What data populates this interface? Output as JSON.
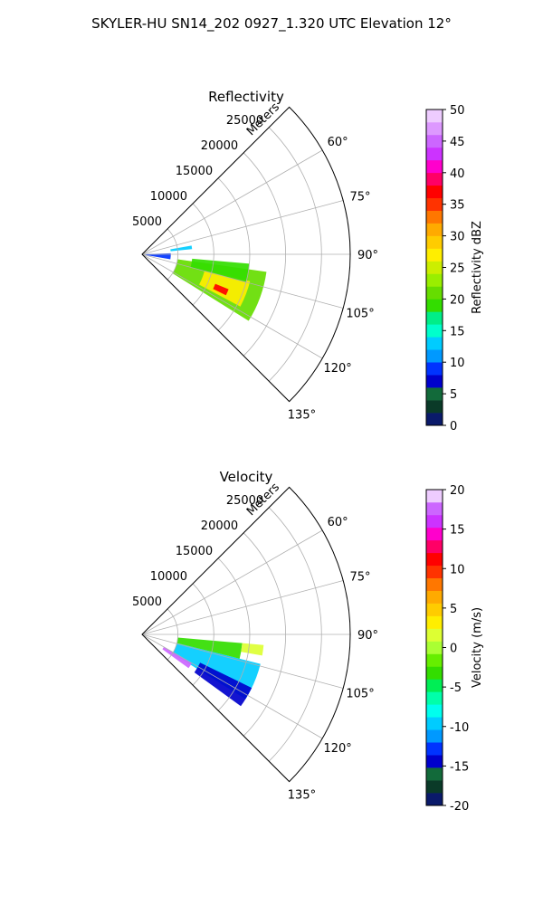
{
  "figure": {
    "title": "SKYLER-HU  SN14_202  0927_1.320 UTC Elevation 12°"
  },
  "chart_data": [
    {
      "type": "heatmap",
      "title": "Reflectivity",
      "projection": "polar-sector",
      "theta_range_deg": [
        45,
        135
      ],
      "r_max_m": 29000,
      "range_label": "Meters",
      "range_ticks": [
        "5000",
        "10000",
        "15000",
        "20000",
        "25000"
      ],
      "angle_ticks": [
        "60°",
        "75°",
        "90°",
        "105°",
        "120°",
        "135°"
      ],
      "colorbar": {
        "label": "Reflectivity dBZ",
        "range": [
          0,
          50
        ],
        "ticks": [
          "0",
          "5",
          "10",
          "15",
          "20",
          "25",
          "30",
          "35",
          "40",
          "45",
          "50"
        ],
        "colors": [
          "#0a1a6a",
          "#0a3a28",
          "#126a3a",
          "#0000cc",
          "#0033ff",
          "#0099ff",
          "#00ccff",
          "#00ffcc",
          "#00ee88",
          "#33dd00",
          "#66dd00",
          "#99ee00",
          "#ccee00",
          "#ffee00",
          "#ffcc00",
          "#ffaa00",
          "#ff7700",
          "#ff3300",
          "#ff0000",
          "#ff0066",
          "#ff00cc",
          "#cc33ff",
          "#cc66ff",
          "#dd99ff",
          "#eeccff"
        ]
      },
      "regions": [
        {
          "name": "main echo",
          "theta": [
            98,
            122
          ],
          "r": [
            5000,
            17500
          ],
          "value": 21
        },
        {
          "name": "core",
          "theta": [
            104,
            118
          ],
          "r": [
            9000,
            15500
          ],
          "value": 26
        },
        {
          "name": "peak",
          "theta": [
            112,
            116
          ],
          "r": [
            11000,
            13000
          ],
          "value": 36
        },
        {
          "name": "east arm",
          "theta": [
            95,
            105
          ],
          "r": [
            7000,
            15000
          ],
          "value": 19
        },
        {
          "name": "near range",
          "theta": [
            88,
            100
          ],
          "r": [
            500,
            4000
          ],
          "value": 8
        },
        {
          "name": "spoke",
          "theta": [
            80,
            84
          ],
          "r": [
            4000,
            7000
          ],
          "value": 12
        }
      ]
    },
    {
      "type": "heatmap",
      "title": "Velocity",
      "projection": "polar-sector",
      "theta_range_deg": [
        45,
        135
      ],
      "r_max_m": 29000,
      "range_label": "Meters",
      "range_ticks": [
        "5000",
        "10000",
        "15000",
        "20000",
        "25000"
      ],
      "angle_ticks": [
        "60°",
        "75°",
        "90°",
        "105°",
        "120°",
        "135°"
      ],
      "colorbar": {
        "label": "Velocity (m/s)",
        "range": [
          -20,
          20
        ],
        "ticks": [
          "-20",
          "-15",
          "-10",
          "-5",
          "0",
          "5",
          "10",
          "15",
          "20"
        ],
        "colors": [
          "#0a1a6a",
          "#0a3a28",
          "#126a3a",
          "#0000cc",
          "#0033ff",
          "#0099ff",
          "#00ccff",
          "#00ffee",
          "#00ffaa",
          "#00ee55",
          "#33dd00",
          "#66ee00",
          "#aaff33",
          "#ddff33",
          "#ffee00",
          "#ffcc00",
          "#ffaa00",
          "#ff7700",
          "#ff3300",
          "#ff0000",
          "#ff0066",
          "#ff00cc",
          "#cc33ff",
          "#cc66ff",
          "#eeccff"
        ]
      },
      "regions": [
        {
          "name": "inbound sector",
          "theta": [
            104,
            122
          ],
          "r": [
            5000,
            17000
          ],
          "value": -10
        },
        {
          "name": "strong inbound edge",
          "theta": [
            116,
            126
          ],
          "r": [
            9000,
            17000
          ],
          "value": -15
        },
        {
          "name": "near-zero band",
          "theta": [
            95,
            104
          ],
          "r": [
            5000,
            14000
          ],
          "value": -4
        },
        {
          "name": "outbound patch",
          "theta": [
            95,
            100
          ],
          "r": [
            14000,
            17000
          ],
          "value": 1
        },
        {
          "name": "purple fringe",
          "theta": [
            120,
            126
          ],
          "r": [
            3500,
            8000
          ],
          "value": 17
        }
      ]
    }
  ]
}
